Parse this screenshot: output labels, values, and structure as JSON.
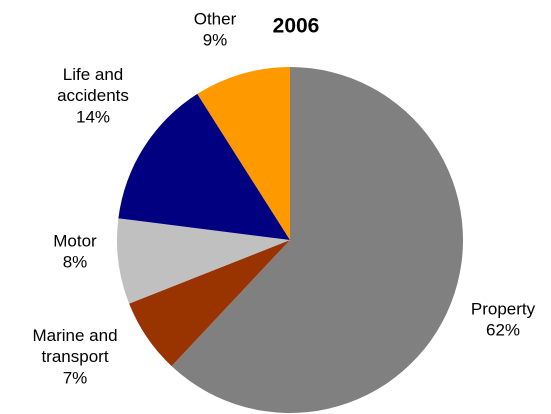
{
  "chart_data": {
    "type": "pie",
    "title": "2006",
    "categories": [
      "Property",
      "Marine and transport",
      "Motor",
      "Life and accidents",
      "Other"
    ],
    "values": [
      62,
      7,
      8,
      14,
      9
    ],
    "value_labels": [
      "62%",
      "7%",
      "8%",
      "14%",
      "9%"
    ],
    "colors": [
      "#808080",
      "#993300",
      "#c0c0c0",
      "#000080",
      "#ff9900"
    ]
  }
}
